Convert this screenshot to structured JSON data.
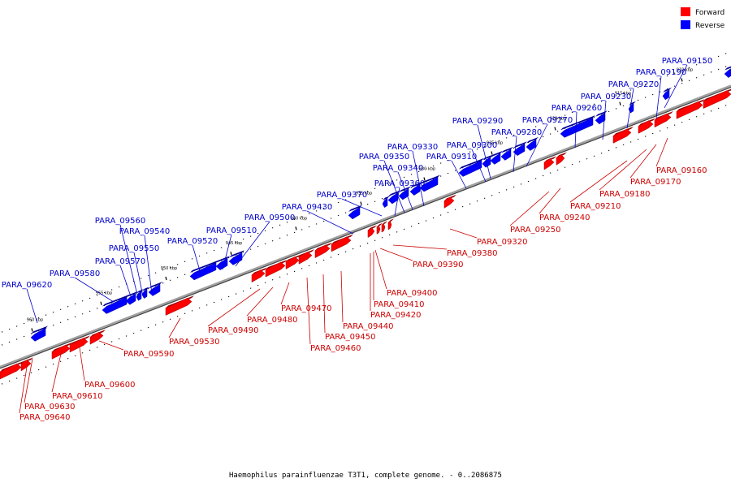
{
  "title": "Haemophilus parainfluenzae T3T1, complete genome. - 0..2086875",
  "legend": [
    {
      "label": "Forward",
      "color": "#ff0000"
    },
    {
      "label": "Reverse",
      "color": "#0000ff"
    }
  ],
  "colors": {
    "forward": "#ff0000",
    "reverse": "#0000ff",
    "axis": "#808080"
  },
  "scale_labels": [
    "910 kbp",
    "915 kbp",
    "920 kbp",
    "925 kbp",
    "930 kbp",
    "935 kbp",
    "940 kbp",
    "945 kbp",
    "950 kbp",
    "955 kbp",
    "960 kbp"
  ],
  "reverse_genes": [
    "PARA_09150",
    "PARA_09190",
    "PARA_09220",
    "PARA_09230",
    "PARA_09260",
    "PARA_09270",
    "PARA_09280",
    "PARA_09290",
    "PARA_09300",
    "PARA_09310",
    "PARA_09330",
    "PARA_09340",
    "PARA_09350",
    "PARA_09360",
    "PARA_09370",
    "PARA_09430",
    "PARA_09500",
    "PARA_09510",
    "PARA_09520",
    "PARA_09540",
    "PARA_09550",
    "PARA_09560",
    "PARA_09570",
    "PARA_09580",
    "PARA_09620"
  ],
  "forward_genes": [
    "PARA_09160",
    "PARA_09170",
    "PARA_09180",
    "PARA_09210",
    "PARA_09240",
    "PARA_09250",
    "PARA_09320",
    "PARA_09380",
    "PARA_09390",
    "PARA_09400",
    "PARA_09410",
    "PARA_09420",
    "PARA_09440",
    "PARA_09450",
    "PARA_09460",
    "PARA_09470",
    "PARA_09480",
    "PARA_09490",
    "PARA_09530",
    "PARA_09590",
    "PARA_09600",
    "PARA_09610",
    "PARA_09630",
    "PARA_09640"
  ]
}
